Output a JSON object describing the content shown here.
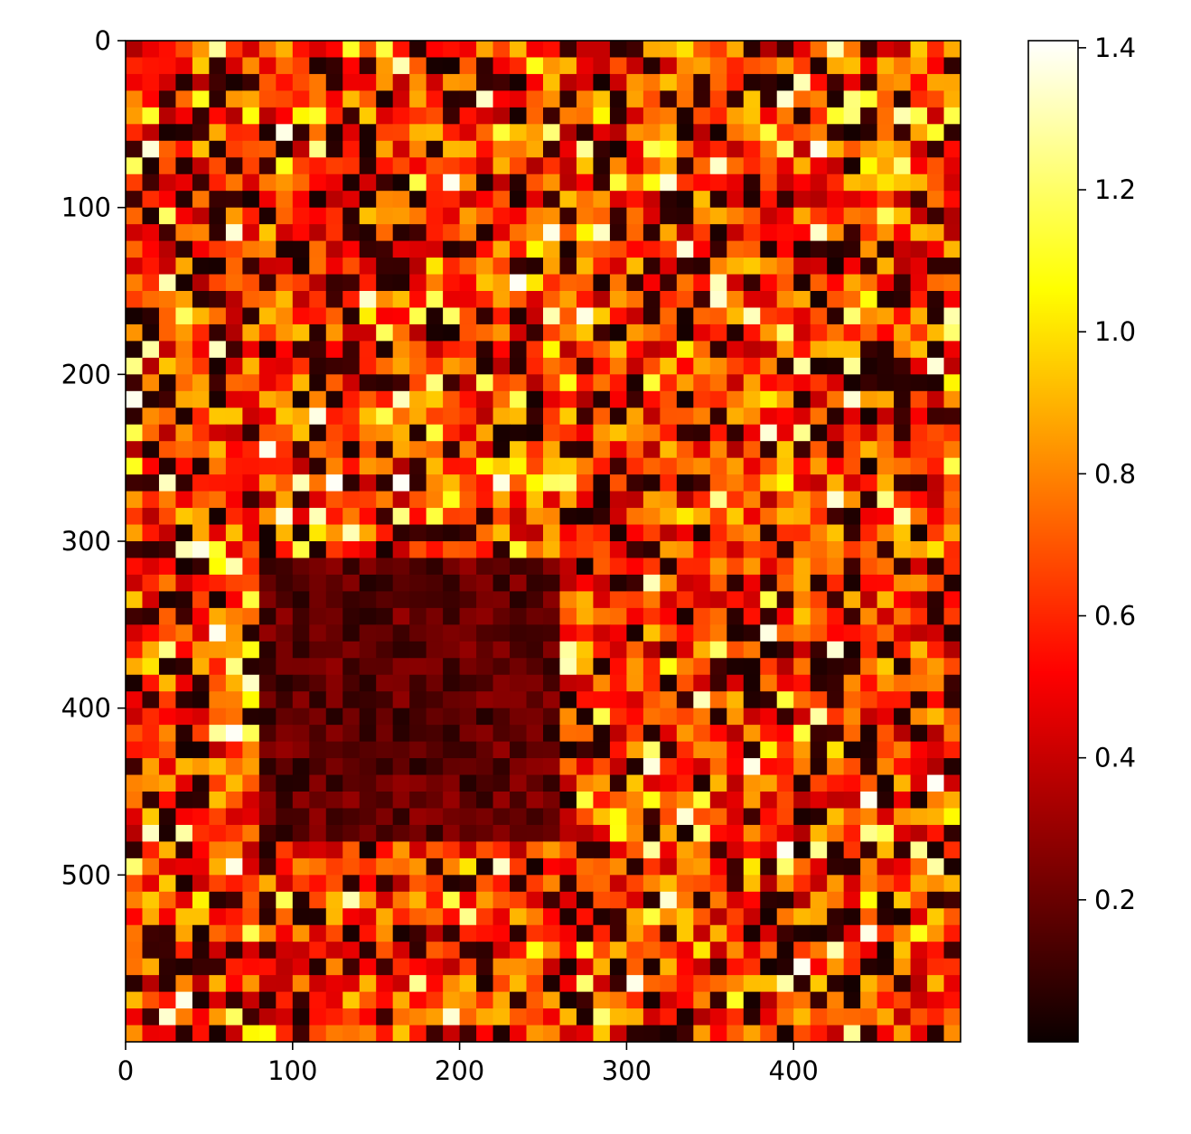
{
  "chart_data": {
    "type": "heatmap",
    "title": "",
    "xlabel": "",
    "ylabel": "",
    "image_size": {
      "cols": 500,
      "rows": 600
    },
    "xlim": [
      0,
      500
    ],
    "ylim": [
      600,
      0
    ],
    "x_ticks": [
      0,
      100,
      200,
      300,
      400
    ],
    "x_tick_labels": [
      "0",
      "100",
      "200",
      "300",
      "400"
    ],
    "y_ticks": [
      0,
      100,
      200,
      300,
      400,
      500
    ],
    "y_tick_labels": [
      "0",
      "100",
      "200",
      "300",
      "400",
      "500"
    ],
    "colormap": "hot",
    "colorbar": {
      "range": [
        0.0,
        1.41
      ],
      "ticks": [
        0.2,
        0.4,
        0.6,
        0.8,
        1.0,
        1.2,
        1.4
      ],
      "tick_labels": [
        "0.2",
        "0.4",
        "0.6",
        "0.8",
        "1.0",
        "1.2",
        "1.4"
      ]
    },
    "colormap_stops": [
      {
        "value": 0.0,
        "color": "#0b0000"
      },
      {
        "value": 0.52,
        "color": "#ff0000"
      },
      {
        "value": 1.06,
        "color": "#ffff00"
      },
      {
        "value": 1.41,
        "color": "#ffffff"
      }
    ],
    "grid": false
  }
}
